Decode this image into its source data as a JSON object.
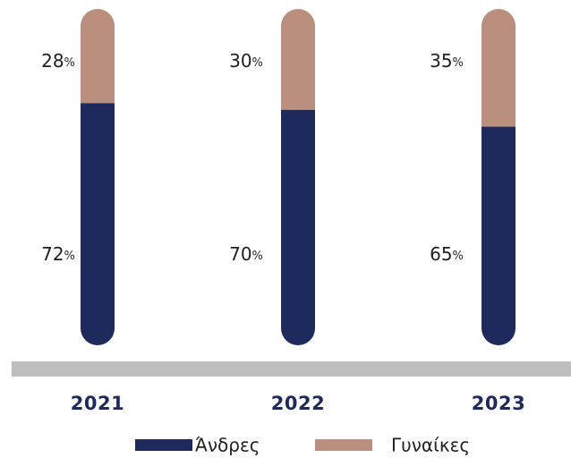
{
  "chart_data": {
    "type": "bar",
    "stacked": true,
    "orientation": "vertical",
    "categories": [
      "2021",
      "2022",
      "2023"
    ],
    "series": [
      {
        "name": "Άνδρες",
        "values": [
          72,
          70,
          65
        ],
        "color": "#1f2a5c"
      },
      {
        "name": "Γυναίκες",
        "values": [
          28,
          30,
          35
        ],
        "color": "#bb8f7d"
      }
    ],
    "value_suffix": "%",
    "ylim": [
      0,
      100
    ],
    "grid": false,
    "legend_position": "bottom",
    "baseline_color": "#bebebe"
  }
}
